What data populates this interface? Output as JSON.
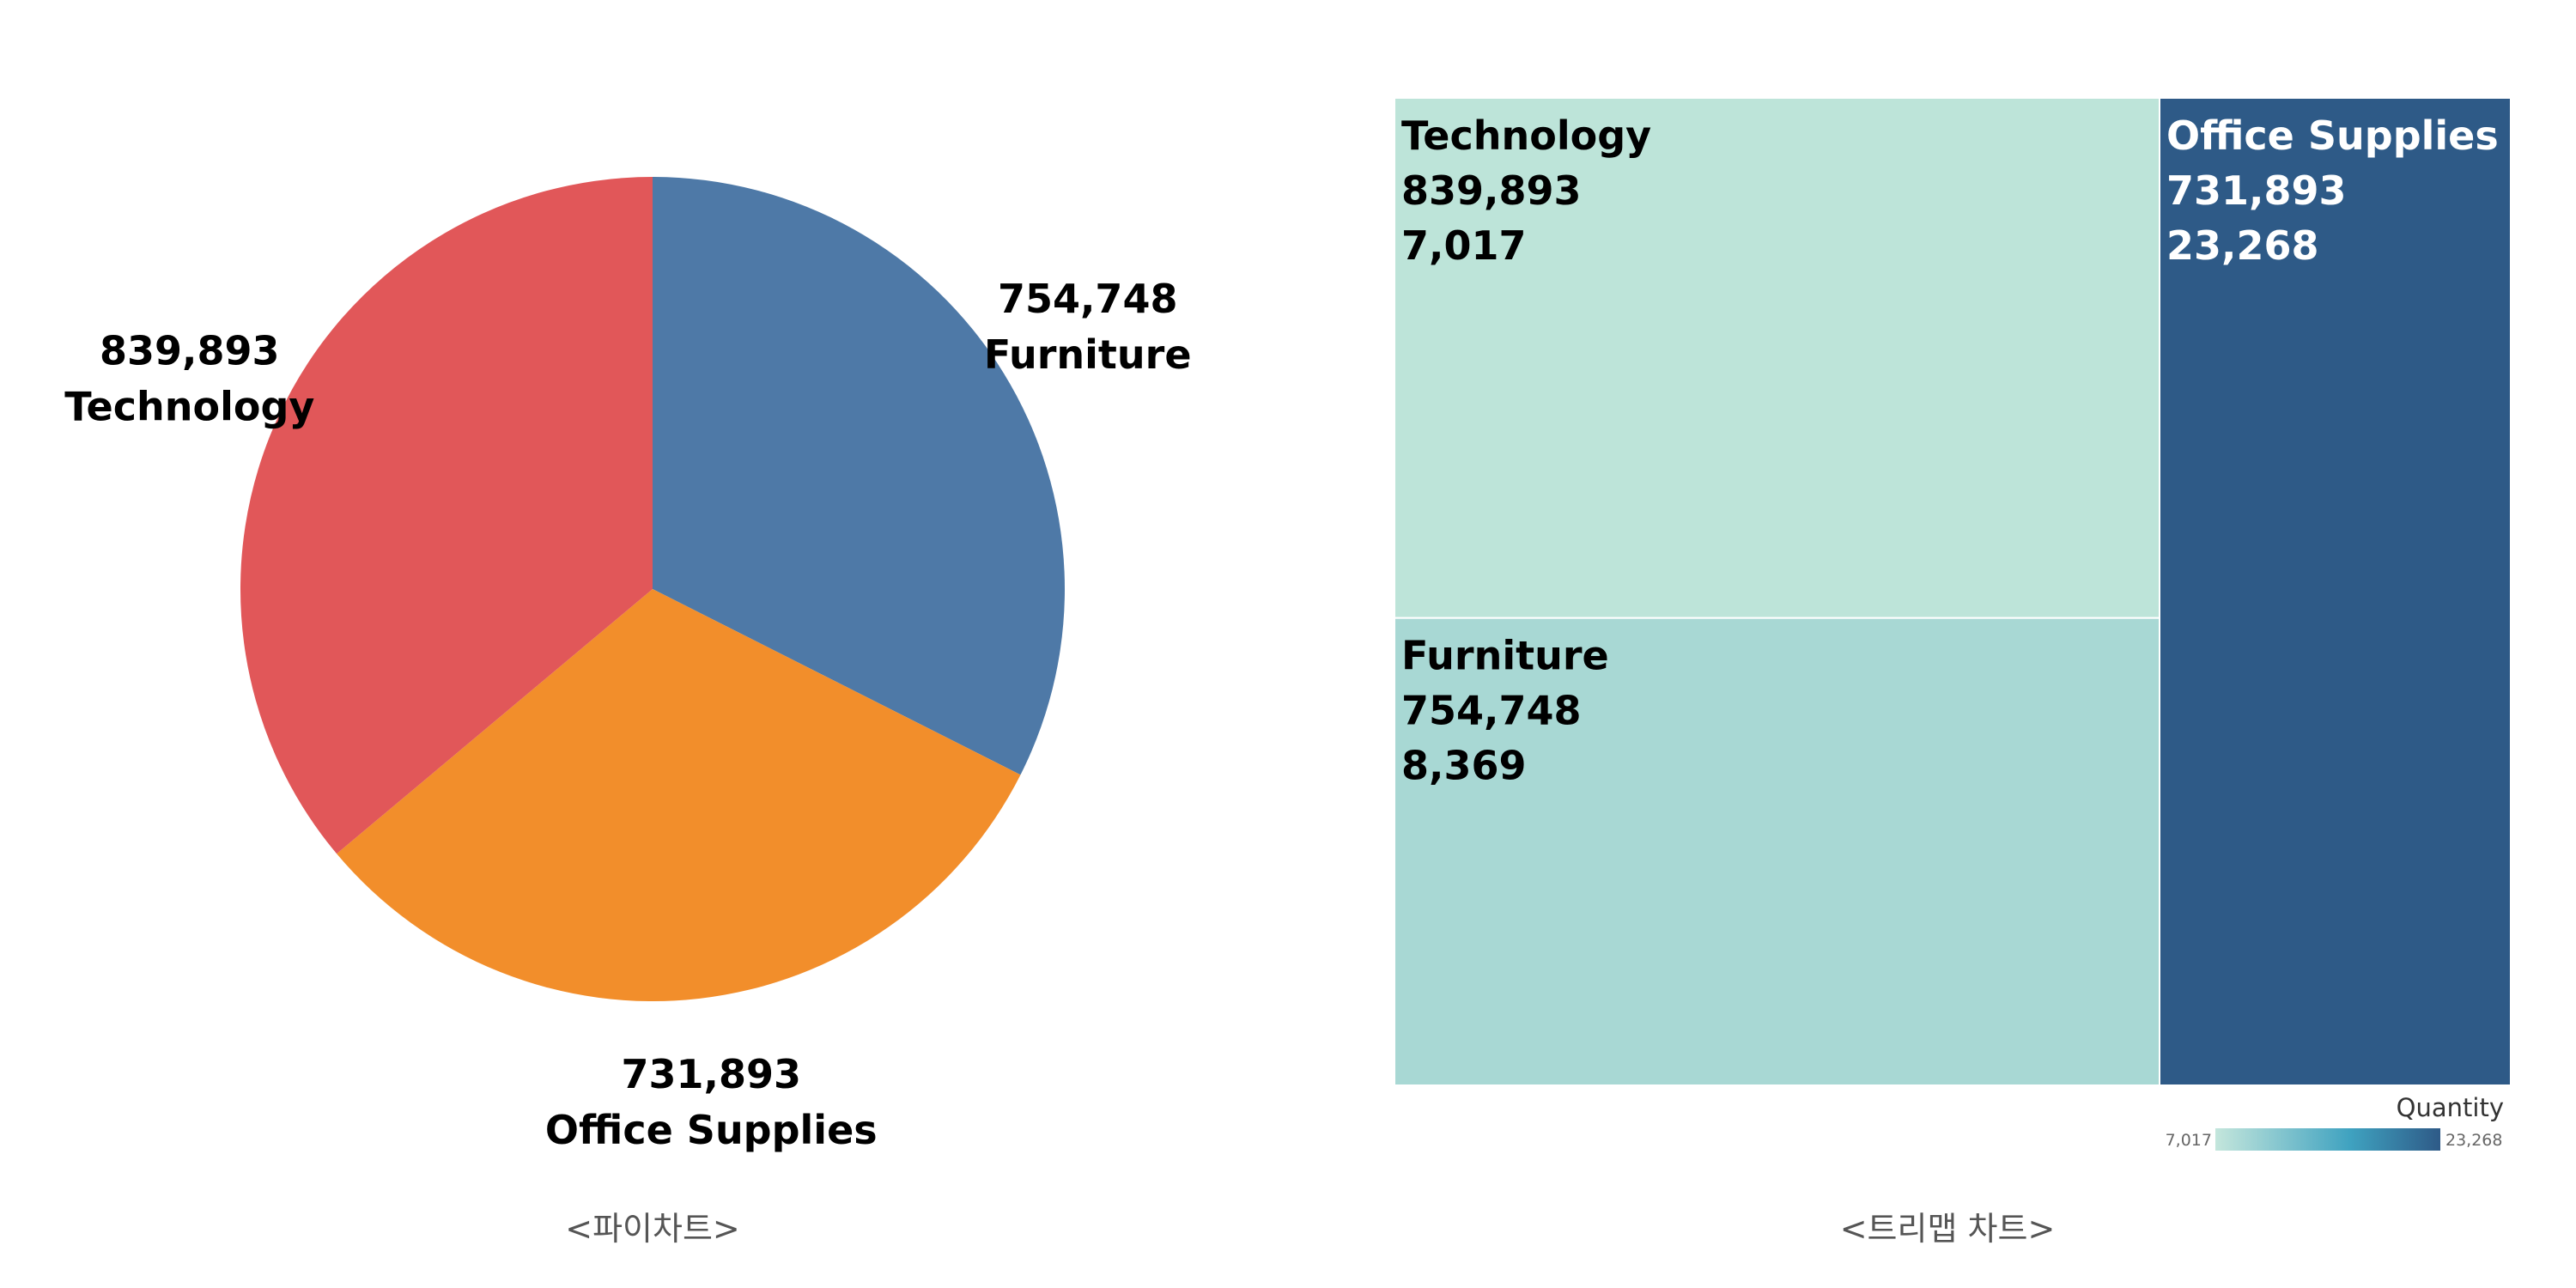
{
  "chart_data": [
    {
      "type": "pie",
      "title": "",
      "caption": "<파이차트>",
      "slices": [
        {
          "name": "Furniture",
          "value": 754748,
          "value_label": "754,748",
          "color": "#4e79a7"
        },
        {
          "name": "Office Supplies",
          "value": 731893,
          "value_label": "731,893",
          "color": "#f28e2b"
        },
        {
          "name": "Technology",
          "value": 839893,
          "value_label": "839,893",
          "color": "#e15759"
        }
      ],
      "start": "top",
      "direction": "clockwise",
      "legend": "none"
    },
    {
      "type": "treemap",
      "title": "",
      "caption": "<트리맵 차트>",
      "size_measure": "Sales",
      "color_measure": "Quantity",
      "cells": [
        {
          "name": "Technology",
          "size": 839893,
          "size_label": "839,893",
          "color_value": 7017,
          "color_label": "7,017",
          "color": "#bde4d9",
          "text_color": "#000000"
        },
        {
          "name": "Furniture",
          "size": 754748,
          "size_label": "754,748",
          "color_value": 8369,
          "color_label": "8,369",
          "color": "#a8d8d4",
          "text_color": "#000000"
        },
        {
          "name": "Office Supplies",
          "size": 731893,
          "size_label": "731,893",
          "color_value": 23268,
          "color_label": "23,268",
          "color": "#2e5a87",
          "text_color": "#ffffff"
        }
      ],
      "legend": {
        "title": "Quantity",
        "min_label": "7,017",
        "max_label": "23,268",
        "min_color": "#c4e6dc",
        "mid_color": "#3fa2c0",
        "max_color": "#2e5a87",
        "placement": "bottom-right"
      }
    }
  ]
}
